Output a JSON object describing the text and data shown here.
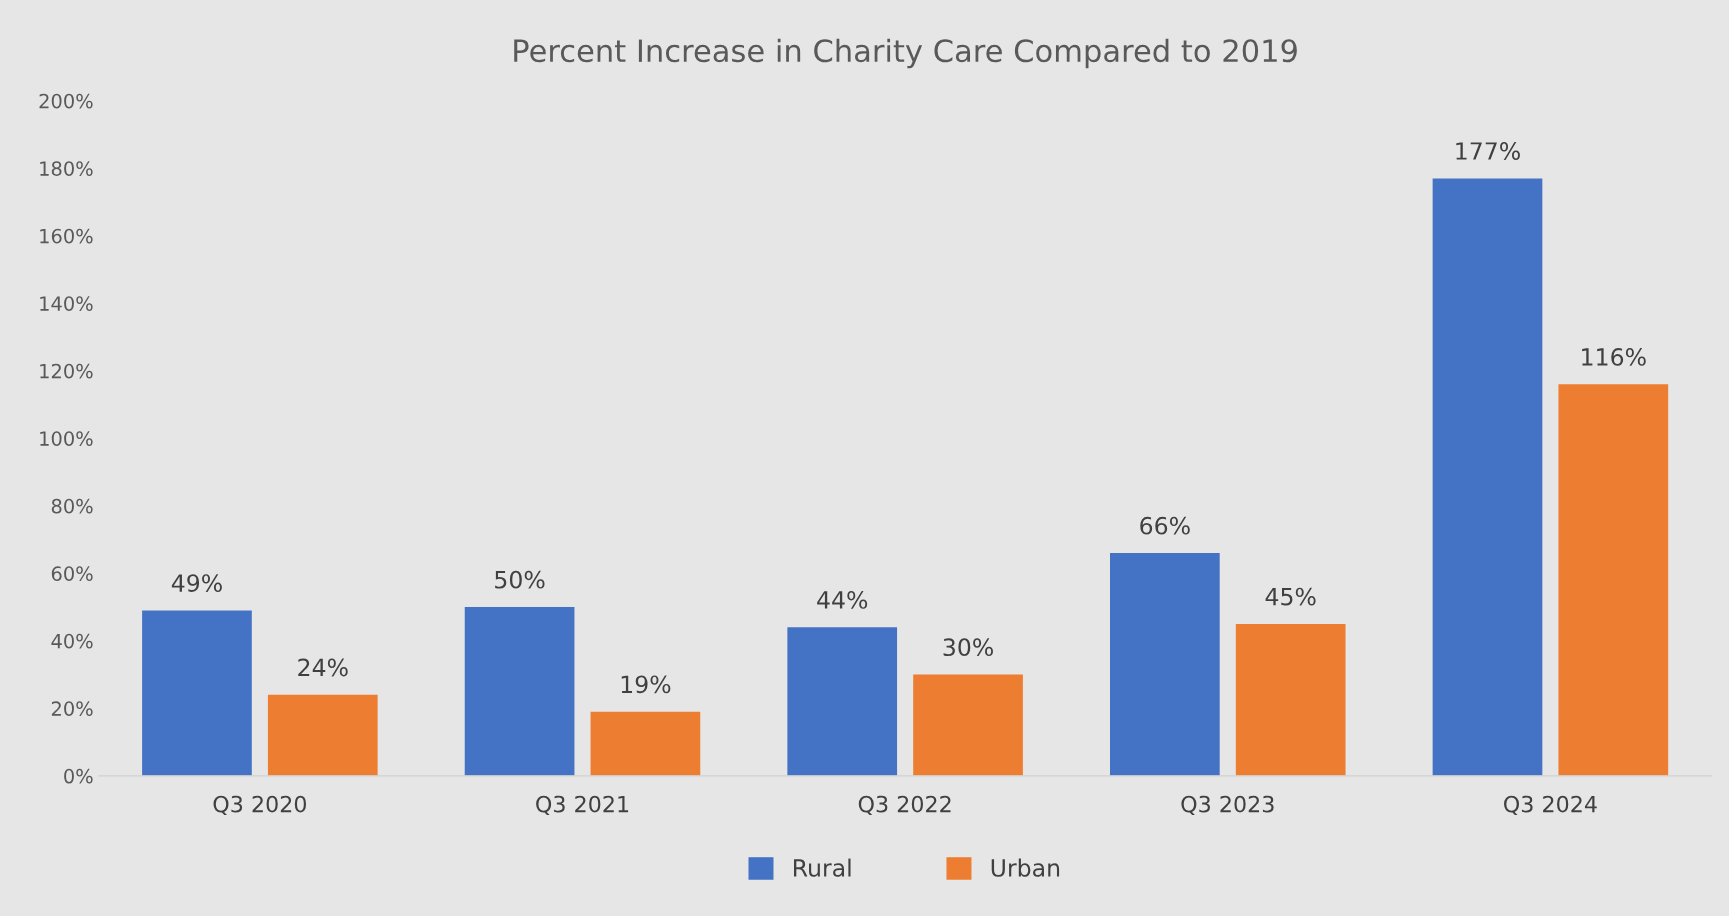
{
  "chart_data": {
    "type": "bar",
    "title": "Percent Increase in Charity Care Compared to 2019",
    "categories": [
      "Q3 2020",
      "Q3 2021",
      "Q3 2022",
      "Q3 2023",
      "Q3 2024"
    ],
    "series": [
      {
        "name": "Rural",
        "color": "#4472c4",
        "values": [
          49,
          50,
          44,
          66,
          177
        ],
        "value_labels": [
          "49%",
          "50%",
          "44%",
          "66%",
          "177%"
        ]
      },
      {
        "name": "Urban",
        "color": "#ed7d31",
        "values": [
          24,
          19,
          30,
          45,
          116
        ],
        "value_labels": [
          "24%",
          "19%",
          "30%",
          "45%",
          "116%"
        ]
      }
    ],
    "ylim": [
      0,
      200
    ],
    "yticks": [
      {
        "value": 0,
        "label": "0%"
      },
      {
        "value": 20,
        "label": "20%"
      },
      {
        "value": 40,
        "label": "40%"
      },
      {
        "value": 60,
        "label": "60%"
      },
      {
        "value": 80,
        "label": "80%"
      },
      {
        "value": 100,
        "label": "100%"
      },
      {
        "value": 120,
        "label": "120%"
      },
      {
        "value": 140,
        "label": "140%"
      },
      {
        "value": 160,
        "label": "160%"
      },
      {
        "value": 180,
        "label": "180%"
      },
      {
        "value": 200,
        "label": "200%"
      }
    ],
    "grid": false,
    "legend": "bottom"
  }
}
